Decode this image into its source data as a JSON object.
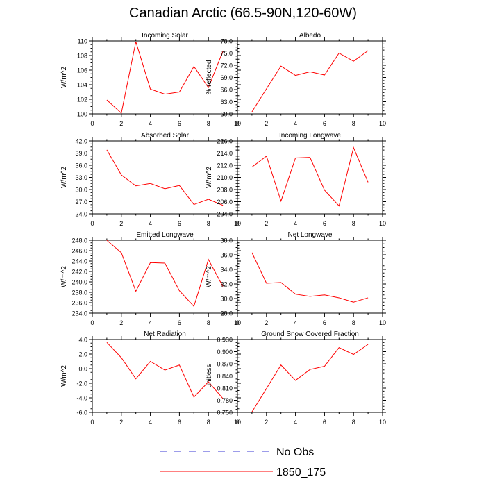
{
  "title": "Canadian Arctic (66.5-90N,120-60W)",
  "legend": {
    "entries": [
      {
        "label": "No Obs",
        "style": "dashed",
        "color": "#3b3bd6"
      },
      {
        "label": "1850_175",
        "style": "solid",
        "color": "#ff0000"
      }
    ]
  },
  "chart_data": [
    {
      "type": "line",
      "title": "Incoming Solar",
      "ylabel": "W/m^2",
      "xlim": [
        0,
        10
      ],
      "ylim": [
        100,
        110
      ],
      "xticks": [
        0,
        2,
        4,
        6,
        8,
        10
      ],
      "yticks": [
        100,
        102,
        104,
        106,
        108,
        110
      ],
      "ydecimals": 0,
      "series": [
        {
          "color": "#ff0000",
          "x": [
            1,
            2,
            3,
            4,
            5,
            6,
            7,
            8,
            9
          ],
          "y": [
            101.9,
            100.1,
            109.9,
            103.4,
            102.7,
            103.0,
            106.5,
            103.6,
            108.6
          ]
        }
      ]
    },
    {
      "type": "line",
      "title": "Albedo",
      "ylabel": "% reflected",
      "xlim": [
        0,
        10
      ],
      "ylim": [
        60,
        78
      ],
      "xticks": [
        0,
        2,
        4,
        6,
        8,
        10
      ],
      "yticks": [
        60,
        63,
        66,
        69,
        72,
        75,
        78
      ],
      "ydecimals": 1,
      "series": [
        {
          "color": "#ff0000",
          "x": [
            1,
            2,
            3,
            4,
            5,
            6,
            7,
            8,
            9
          ],
          "y": [
            60.5,
            66.2,
            71.8,
            69.5,
            70.4,
            69.6,
            75.0,
            73.0,
            75.6
          ]
        }
      ]
    },
    {
      "type": "line",
      "title": "Absorbed Solar",
      "ylabel": "W/m^2",
      "xlim": [
        0,
        10
      ],
      "ylim": [
        24,
        42
      ],
      "xticks": [
        0,
        2,
        4,
        6,
        8,
        10
      ],
      "yticks": [
        24,
        27,
        30,
        33,
        36,
        39,
        42
      ],
      "ydecimals": 1,
      "series": [
        {
          "color": "#ff0000",
          "x": [
            1,
            2,
            3,
            4,
            5,
            6,
            7,
            8,
            9
          ],
          "y": [
            39.8,
            33.6,
            30.9,
            31.5,
            30.2,
            31.0,
            26.3,
            27.6,
            26.1
          ]
        }
      ]
    },
    {
      "type": "line",
      "title": "Incoming Longwave",
      "ylabel": "W/m^2",
      "xlim": [
        0,
        10
      ],
      "ylim": [
        204,
        216
      ],
      "xticks": [
        0,
        2,
        4,
        6,
        8,
        10
      ],
      "yticks": [
        204,
        206,
        208,
        210,
        212,
        214,
        216
      ],
      "ydecimals": 1,
      "series": [
        {
          "color": "#ff0000",
          "x": [
            1,
            2,
            3,
            4,
            5,
            6,
            7,
            8,
            9
          ],
          "y": [
            211.7,
            213.5,
            206.1,
            213.2,
            213.3,
            207.9,
            205.3,
            214.9,
            209.2
          ]
        }
      ]
    },
    {
      "type": "line",
      "title": "Emitted Longwave",
      "ylabel": "W/m^2",
      "xlim": [
        0,
        10
      ],
      "ylim": [
        234,
        248
      ],
      "xticks": [
        0,
        2,
        4,
        6,
        8,
        10
      ],
      "yticks": [
        234,
        236,
        238,
        240,
        242,
        244,
        246,
        248
      ],
      "ydecimals": 1,
      "series": [
        {
          "color": "#ff0000",
          "x": [
            1,
            2,
            3,
            4,
            5,
            6,
            7,
            8,
            9
          ],
          "y": [
            248.0,
            245.6,
            238.2,
            243.7,
            243.6,
            238.3,
            235.3,
            244.3,
            239.1
          ]
        }
      ]
    },
    {
      "type": "line",
      "title": "Net Longwave",
      "ylabel": "W/m^2",
      "xlim": [
        0,
        10
      ],
      "ylim": [
        28,
        38
      ],
      "xticks": [
        0,
        2,
        4,
        6,
        8,
        10
      ],
      "yticks": [
        28,
        30,
        32,
        34,
        36,
        38
      ],
      "ydecimals": 1,
      "series": [
        {
          "color": "#ff0000",
          "x": [
            1,
            2,
            3,
            4,
            5,
            6,
            7,
            8,
            9
          ],
          "y": [
            36.3,
            32.1,
            32.2,
            30.6,
            30.3,
            30.5,
            30.1,
            29.5,
            30.1
          ]
        }
      ]
    },
    {
      "type": "line",
      "title": "Net Radiation",
      "ylabel": "W/m^2",
      "xlim": [
        0,
        10
      ],
      "ylim": [
        -6,
        4
      ],
      "xticks": [
        0,
        2,
        4,
        6,
        8,
        10
      ],
      "yticks": [
        -6,
        -4,
        -2,
        0,
        2,
        4
      ],
      "ydecimals": 1,
      "series": [
        {
          "color": "#ff0000",
          "x": [
            1,
            2,
            3,
            4,
            5,
            6,
            7,
            8,
            9
          ],
          "y": [
            3.6,
            1.5,
            -1.4,
            1.0,
            -0.2,
            0.5,
            -3.9,
            -1.8,
            -4.1
          ]
        }
      ]
    },
    {
      "type": "line",
      "title": "Ground Snow Covered Fraction",
      "ylabel": "unitless",
      "xlim": [
        0,
        10
      ],
      "ylim": [
        0.75,
        0.93
      ],
      "xticks": [
        0,
        2,
        4,
        6,
        8,
        10
      ],
      "yticks": [
        0.75,
        0.78,
        0.81,
        0.84,
        0.87,
        0.9,
        0.93
      ],
      "ydecimals": 3,
      "series": [
        {
          "color": "#ff0000",
          "x": [
            1,
            2,
            3,
            4,
            5,
            6,
            7,
            8,
            9
          ],
          "y": [
            0.751,
            0.809,
            0.867,
            0.829,
            0.856,
            0.864,
            0.91,
            0.893,
            0.918
          ]
        }
      ]
    }
  ]
}
